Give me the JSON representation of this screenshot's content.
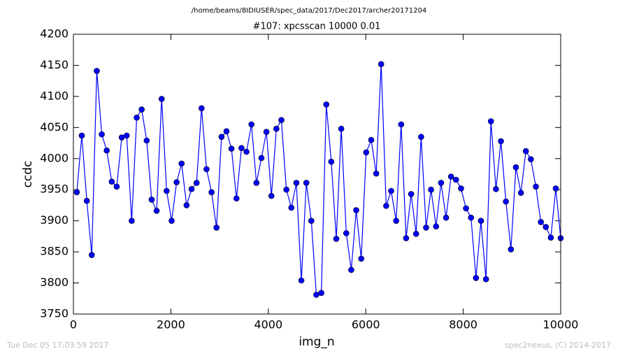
{
  "chart_data": {
    "type": "line",
    "path_title": "/home/beams/8IDIUSER/spec_data/2017/Dec2017/archer20171204",
    "title": "#107: xpcsscan 10000 0.01",
    "xlabel": "img_n",
    "ylabel": "ccdc",
    "footer_left": "Tue Dec 05 17:03:59 2017",
    "footer_right": "spec2nexus, (C) 2014-2017",
    "color": "#0000ff",
    "marker": "circle",
    "x": [
      70,
      172,
      275,
      377,
      480,
      582,
      684,
      787,
      889,
      992,
      1094,
      1196,
      1299,
      1401,
      1504,
      1606,
      1708,
      1811,
      1913,
      2016,
      2118,
      2220,
      2323,
      2425,
      2528,
      2630,
      2732,
      2835,
      2937,
      3040,
      3142,
      3244,
      3347,
      3449,
      3552,
      3654,
      3756,
      3859,
      3961,
      4064,
      4166,
      4268,
      4371,
      4473,
      4576,
      4678,
      4780,
      4883,
      4985,
      5088,
      5190,
      5292,
      5395,
      5497,
      5600,
      5702,
      5804,
      5907,
      6009,
      6112,
      6214,
      6316,
      6419,
      6521,
      6624,
      6726,
      6828,
      6931,
      7033,
      7136,
      7238,
      7340,
      7443,
      7545,
      7648,
      7750,
      7852,
      7955,
      8057,
      8160,
      8262,
      8364,
      8467,
      8569,
      8672,
      8774,
      8876,
      8979,
      9081,
      9184,
      9286,
      9388,
      9491,
      9593,
      9696,
      9798,
      9900,
      10000
    ],
    "values": [
      3946,
      4037,
      3932,
      3845,
      4141,
      4039,
      4013,
      3963,
      3955,
      4034,
      4037,
      3900,
      4066,
      4079,
      4029,
      3934,
      3916,
      4096,
      3948,
      3900,
      3962,
      3992,
      3925,
      3951,
      3961,
      4081,
      3983,
      3946,
      3889,
      4035,
      4044,
      4016,
      3936,
      4017,
      4011,
      4055,
      3961,
      4001,
      4043,
      3940,
      4048,
      4062,
      3950,
      3921,
      3961,
      3804,
      3961,
      3900,
      3781,
      3784,
      4087,
      3995,
      3871,
      4048,
      3880,
      3821,
      3917,
      3839,
      4010,
      4030,
      3976,
      4152,
      3924,
      3948,
      3900,
      4055,
      3872,
      3943,
      3879,
      4035,
      3889,
      3950,
      3891,
      3961,
      3905,
      3971,
      3966,
      3952,
      3920,
      3905,
      3808,
      3900,
      3806,
      4060,
      3951,
      4028,
      3931,
      3854,
      3986,
      3945,
      4012,
      3999,
      3955,
      3898,
      3890,
      3873,
      3952,
      3872
    ],
    "xlim": [
      0,
      10000
    ],
    "xticks": [
      0,
      2000,
      4000,
      6000,
      8000,
      10000
    ],
    "ylim": [
      3750,
      4200
    ],
    "yticks": [
      3750,
      3800,
      3850,
      3900,
      3950,
      4000,
      4050,
      4100,
      4150,
      4200
    ]
  }
}
